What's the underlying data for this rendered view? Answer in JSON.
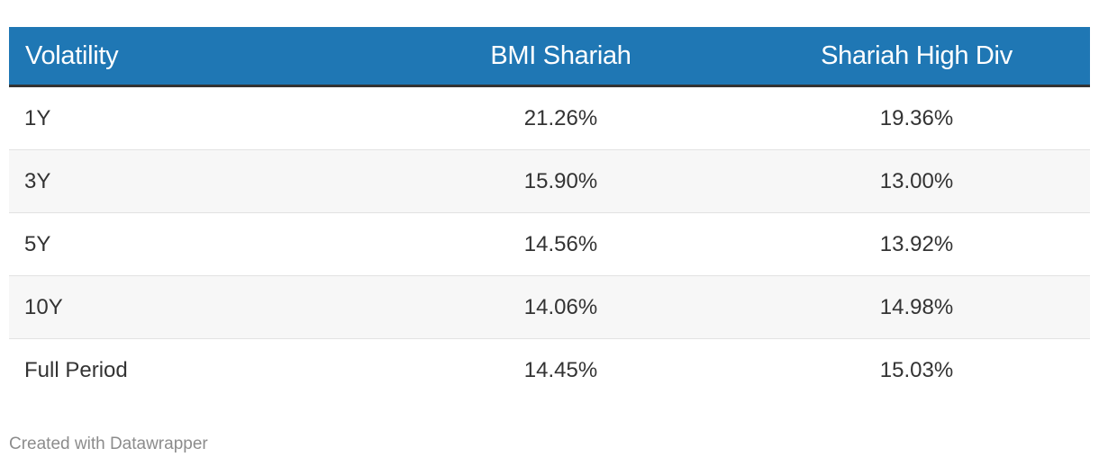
{
  "chart_data": {
    "type": "table",
    "columns": [
      "Volatility",
      "BMI Shariah",
      "Shariah High Div"
    ],
    "rows": [
      [
        "1Y",
        "21.26%",
        "19.36%"
      ],
      [
        "3Y",
        "15.90%",
        "13.00%"
      ],
      [
        "5Y",
        "14.56%",
        "13.92%"
      ],
      [
        "10Y",
        "14.06%",
        "14.98%"
      ],
      [
        "Full Period",
        "14.45%",
        "15.03%"
      ]
    ],
    "values": {
      "BMI Shariah": [
        21.26,
        15.9,
        14.56,
        14.06,
        14.45
      ],
      "Shariah High Div": [
        19.36,
        13.0,
        13.92,
        14.98,
        15.03
      ]
    },
    "header_color": "#1f77b4"
  },
  "footer": {
    "credit": "Created with Datawrapper"
  }
}
